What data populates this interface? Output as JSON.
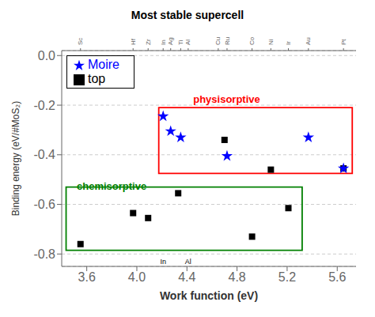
{
  "chart_data": {
    "type": "scatter",
    "title": "Most stable supercell",
    "x_label": "Work function (eV)",
    "y_label": "Binding energy (eV/#MoS₂)",
    "xlim": [
      3.4,
      5.75
    ],
    "ylim": [
      -0.85,
      0.02
    ],
    "xticks": [
      3.6,
      {
        "value": 4.0,
        "label": "4.0"
      },
      4.4,
      4.8,
      5.2,
      5.6
    ],
    "yticks": [
      {
        "value": 0.0,
        "label": "0.0"
      },
      -0.2,
      -0.4,
      -0.6,
      -0.8
    ],
    "x2lim": [
      3.4,
      5.75
    ],
    "x2ticks": [
      {
        "value": 3.55,
        "label": "Sc"
      },
      {
        "value": 3.97,
        "label": "Hf"
      },
      {
        "value": 4.09,
        "label": "Zr"
      },
      {
        "value": 4.21,
        "label": "In"
      },
      {
        "value": 4.27,
        "label": "Ag"
      },
      {
        "value": 4.35,
        "label": "Ti"
      },
      {
        "value": 4.41,
        "label": "Al"
      },
      {
        "value": 4.65,
        "label": "Cu"
      },
      {
        "value": 4.72,
        "label": "Ru"
      },
      {
        "value": 4.92,
        "label": "Co"
      },
      {
        "value": 5.07,
        "label": "Ni"
      },
      {
        "value": 5.21,
        "label": "Ir"
      },
      {
        "value": 5.37,
        "label": "Au"
      },
      {
        "value": 5.65,
        "label": "Pt"
      }
    ],
    "grid": "y",
    "legend": "upper left",
    "series": [
      {
        "name": "top",
        "color": "black",
        "marker": "square",
        "x": [
          3.55,
          3.97,
          4.09,
          4.33,
          4.7,
          4.92,
          5.07,
          5.21,
          5.65
        ],
        "values": [
          -0.76,
          -0.635,
          -0.655,
          -0.555,
          -0.34,
          -0.73,
          -0.46,
          -0.615,
          -0.455
        ]
      },
      {
        "name": "Moire",
        "color": "blue",
        "marker": "star",
        "x": [
          4.21,
          4.27,
          4.35,
          4.72,
          5.37,
          5.65
        ],
        "values": [
          -0.245,
          -0.305,
          -0.33,
          -0.405,
          -0.33,
          -0.455
        ]
      }
    ],
    "annotations": [
      {
        "type": "rect",
        "x": 4.175,
        "y": -0.475,
        "width": 1.545,
        "height": 0.265,
        "color": "red"
      },
      {
        "type": "rect",
        "x": 3.435,
        "y": -0.785,
        "width": 1.885,
        "height": 0.255,
        "color": "green"
      },
      {
        "type": "text",
        "text": "physisorptive",
        "x": 4.45,
        "y": -0.175,
        "color": "red"
      },
      {
        "type": "text",
        "text": "chemisorptive",
        "x": 3.52,
        "y": -0.525,
        "color": "green"
      },
      {
        "type": "text",
        "text": "In",
        "x": 4.21,
        "color": "black"
      },
      {
        "type": "text",
        "text": "Al",
        "x": 4.41,
        "color": "black"
      }
    ]
  }
}
